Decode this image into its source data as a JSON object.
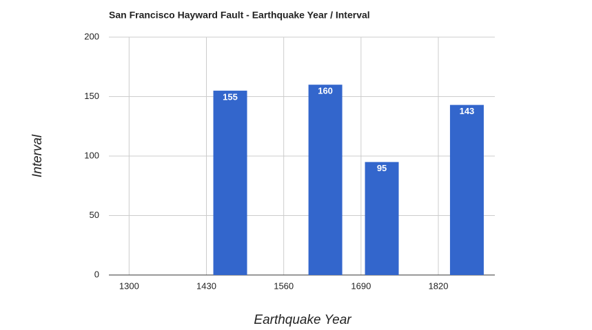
{
  "chart_data": {
    "type": "bar",
    "title": "San Francisco Hayward Fault - Earthquake Year / Interval",
    "x_label": "Earthquake Year",
    "y_label": "Interval",
    "x": [
      1470,
      1630,
      1725,
      1868
    ],
    "values": [
      155,
      160,
      95,
      143
    ],
    "color": "#3366cc",
    "xlim": [
      1266,
      1915
    ],
    "xticks": [
      1300,
      1430,
      1560,
      1690,
      1820
    ],
    "ylim": [
      0,
      200
    ],
    "yticks": [
      0,
      50,
      100,
      150,
      200
    ],
    "grid": true
  }
}
